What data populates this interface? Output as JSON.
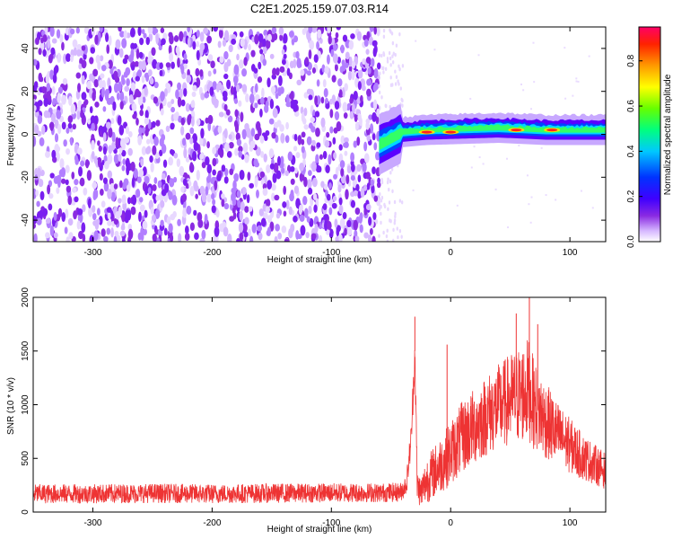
{
  "title": "C2E1.2025.159.07.03.R14",
  "chart_data": [
    {
      "type": "heatmap",
      "xlabel": "Height of straight line (km)",
      "ylabel": "Frequency (Hz)",
      "xlim": [
        -350,
        130
      ],
      "ylim": [
        -50,
        50
      ],
      "xticks": [
        -300,
        -200,
        -100,
        0,
        100
      ],
      "yticks": [
        -40,
        -20,
        0,
        20,
        40
      ],
      "colorbar": {
        "label": "Normalized spectral amplitude",
        "range": [
          0.0,
          0.95
        ],
        "ticks": [
          "0.0",
          "0.2",
          "0.4",
          "0.6",
          "0.8"
        ],
        "tick_values": [
          0.0,
          0.2,
          0.4,
          0.6,
          0.8
        ]
      },
      "regions": [
        {
          "name": "noise",
          "x": [
            -350,
            -60
          ],
          "freq_range": [
            -50,
            50
          ],
          "amplitude": 0.05
        },
        {
          "name": "sparse",
          "x": [
            -60,
            -40
          ],
          "freq_range": [
            -50,
            50
          ],
          "amplitude": 0.02
        },
        {
          "name": "carrier",
          "x": [
            -60,
            130
          ],
          "freq_center": [
            -5,
            1,
            2,
            3,
            2,
            2
          ],
          "freq_center_x": [
            -60,
            -40,
            -20,
            40,
            80,
            130
          ],
          "amplitude": 0.6
        }
      ],
      "hot_spots": [
        {
          "x": -20,
          "f": 1,
          "amp": 0.9
        },
        {
          "x": 0,
          "f": 1,
          "amp": 0.9
        },
        {
          "x": 55,
          "f": 2,
          "amp": 0.85
        },
        {
          "x": 85,
          "f": 2,
          "amp": 0.95
        }
      ]
    },
    {
      "type": "line",
      "xlabel": "Height of straight line (km)",
      "ylabel": "SNR (10 * v/v)",
      "xlim": [
        -350,
        130
      ],
      "ylim": [
        0,
        2000
      ],
      "xticks": [
        -300,
        -200,
        -100,
        0,
        100
      ],
      "yticks": [
        0,
        500,
        1000,
        1500,
        2000
      ],
      "color": "#ee3333",
      "series": [
        {
          "x": [
            -350,
            -300,
            -250,
            -200,
            -150,
            -100,
            -60,
            -42,
            -37,
            -33,
            -30,
            -28,
            -25,
            -20,
            -10,
            0,
            10,
            20,
            30,
            40,
            50,
            60,
            65,
            70,
            80,
            90,
            100,
            110,
            120,
            130
          ],
          "y": [
            170,
            170,
            175,
            170,
            175,
            180,
            180,
            185,
            260,
            700,
            1500,
            250,
            180,
            300,
            420,
            550,
            700,
            800,
            900,
            980,
            1050,
            1100,
            1150,
            1000,
            850,
            720,
            620,
            520,
            450,
            380
          ],
          "noise_amplitude": [
            90,
            90,
            90,
            90,
            90,
            90,
            90,
            90,
            100,
            150,
            200,
            150,
            150,
            220,
            260,
            300,
            340,
            360,
            380,
            400,
            430,
            460,
            480,
            420,
            360,
            300,
            260,
            220,
            190,
            170
          ],
          "spikes": [
            {
              "x": -30,
              "y": 1820
            },
            {
              "x": -3,
              "y": 1560
            },
            {
              "x": 55,
              "y": 1850
            },
            {
              "x": 66,
              "y": 2000
            },
            {
              "x": 73,
              "y": 1750
            }
          ]
        }
      ]
    }
  ]
}
